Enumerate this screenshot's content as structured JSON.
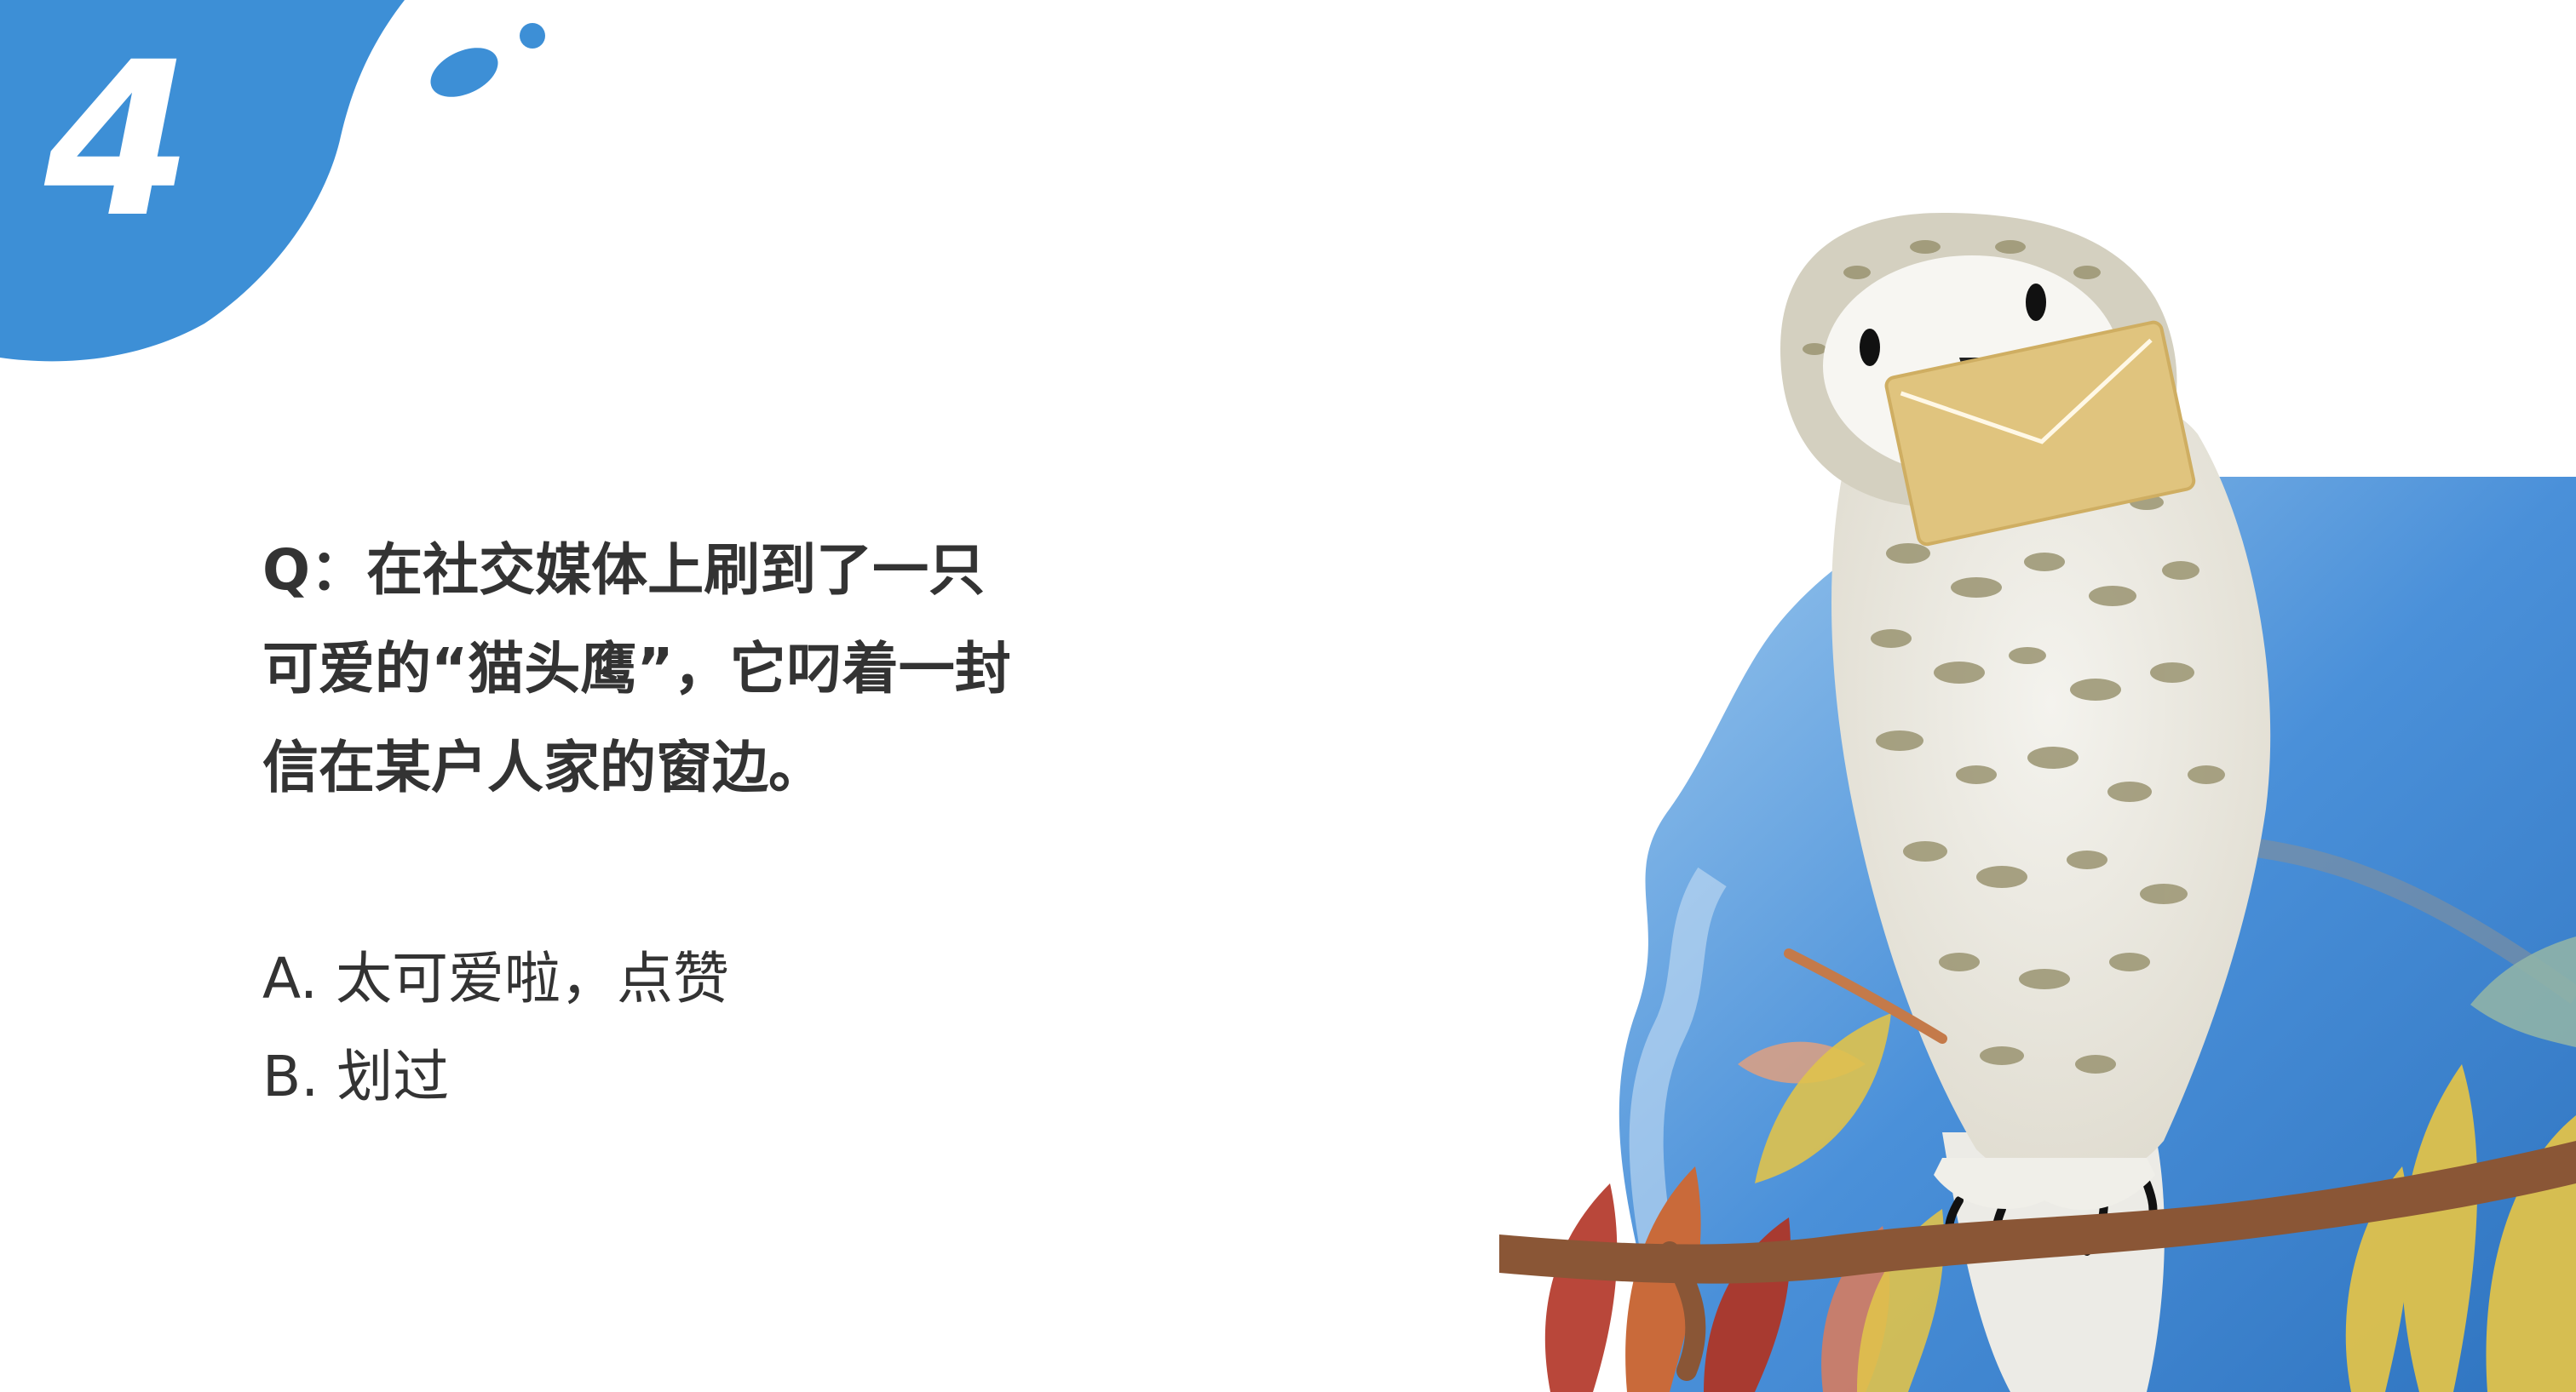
{
  "badge": {
    "number": "4",
    "color": "#3d8fd6"
  },
  "question": {
    "lines": [
      "Q：在社交媒体上刷到了一只",
      "可爱的“猫头鹰”，它叼着一封",
      "信在某户人家的窗边。"
    ]
  },
  "options": [
    {
      "label": "A. 太可爱啦，点赞"
    },
    {
      "label": "B. 划过"
    }
  ],
  "illustration": {
    "subject": "owl-holding-envelope-icon",
    "colors": {
      "sky": "#4a90d9",
      "envelope": "#e0c47e",
      "branch": "#8a5636",
      "leaves_red": "#b9473a",
      "leaves_yellow": "#dfc24b"
    }
  }
}
